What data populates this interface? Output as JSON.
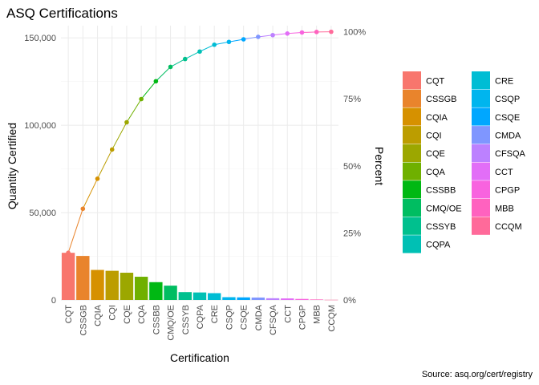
{
  "chart_data": {
    "type": "bar",
    "title": "ASQ Certifications",
    "xlabel": "Certification",
    "ylabel": "Quantity Certified",
    "y2label": "Percent",
    "caption": "Source: asq.org/cert/registry",
    "categories": [
      "CQT",
      "CSSGB",
      "CQIA",
      "CQI",
      "CQE",
      "CQA",
      "CSSBB",
      "CMQ/OE",
      "CSSYB",
      "CQPA",
      "CRE",
      "CSQP",
      "CSQE",
      "CMDA",
      "CFSQA",
      "CCT",
      "CPGP",
      "MBB",
      "CCQM"
    ],
    "values": [
      27000,
      25200,
      17200,
      16700,
      15600,
      13300,
      10200,
      8200,
      4500,
      4300,
      3900,
      1600,
      1500,
      1400,
      1000,
      900,
      600,
      300,
      100
    ],
    "cumulative_values": [
      27000,
      52200,
      69400,
      86100,
      101700,
      115000,
      125200,
      133400,
      137900,
      142200,
      146100,
      147700,
      149200,
      150600,
      151600,
      152500,
      153100,
      153400,
      153500
    ],
    "ylim": [
      0,
      157000
    ],
    "yticks": [
      0,
      50000,
      100000,
      150000
    ],
    "yticklabels": [
      "0",
      "50,000",
      "100,000",
      "150,000"
    ],
    "y2ticklabels": [
      "0%",
      "25%",
      "50%",
      "75%",
      "100%"
    ],
    "colors": [
      "#F8766D",
      "#E9842C",
      "#D69100",
      "#BC9D00",
      "#9CA700",
      "#6FB000",
      "#00B813",
      "#00BD61",
      "#00C08E",
      "#00C0B4",
      "#00BDD4",
      "#00B5EE",
      "#00A7FF",
      "#7F96FF",
      "#BC81FF",
      "#E26EF7",
      "#F863DF",
      "#FF62BF",
      "#FF6A9A"
    ],
    "legend_position": "right",
    "grid": true
  }
}
